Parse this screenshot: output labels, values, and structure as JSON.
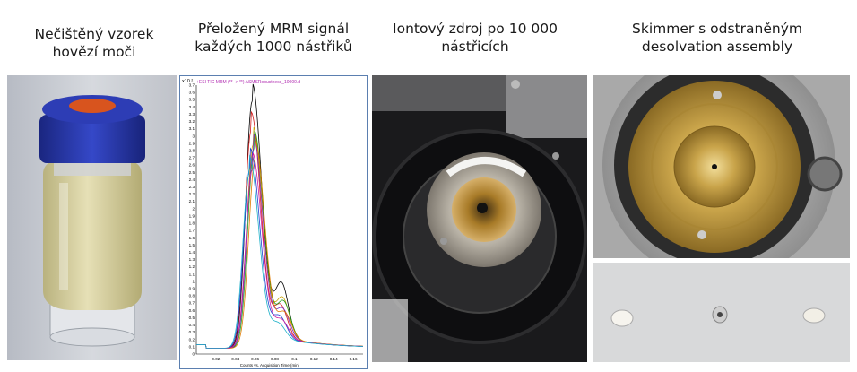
{
  "captions": {
    "vial": "Nečištěný vzorek hovězí moči",
    "chart": "Přeložený MRM signál každých 1000 nástřiků",
    "source": "Iontový zdroj po 10 000 nástřicích",
    "skimmer": "Skimmer s odstraněným desolvation assembly"
  },
  "vial_panel": {
    "cap_color": "#2a3bb0",
    "septum_color": "#d8541e",
    "liquid_color": "#d9d3a3"
  },
  "chart_data": {
    "type": "line",
    "title": "+ESI TIC MRM (** -> **) ASMSRobustness_10000.d",
    "y_scale_label": "x10 ²",
    "xlabel": "Counts vs. Acquisition Time (min)",
    "xlim": [
      0.0,
      0.17
    ],
    "ylim": [
      0,
      3.7
    ],
    "x_ticks": [
      "0.02",
      "0.04",
      "0.06",
      "0.08",
      "0.1",
      "0.12",
      "0.14",
      "0.16"
    ],
    "y_ticks": [
      "0",
      "0.1",
      "0.2",
      "0.3",
      "0.4",
      "0.5",
      "0.6",
      "0.7",
      "0.8",
      "0.9",
      "1",
      "1.1",
      "1.2",
      "1.3",
      "1.4",
      "1.5",
      "1.6",
      "1.7",
      "1.8",
      "1.9",
      "2",
      "2.1",
      "2.2",
      "2.3",
      "2.4",
      "2.5",
      "2.6",
      "2.7",
      "2.8",
      "2.9",
      "3",
      "3.1",
      "3.2",
      "3.3",
      "3.4",
      "3.5",
      "3.6",
      "3.7"
    ],
    "series": [
      {
        "color": "#000000",
        "peak": 3.4,
        "center": 0.057,
        "shoulder": 0.75
      },
      {
        "color": "#d21b1b",
        "peak": 3.0,
        "center": 0.056,
        "shoulder": 0.45
      },
      {
        "color": "#c8a000",
        "peak": 2.8,
        "center": 0.058,
        "shoulder": 0.55
      },
      {
        "color": "#1a9a1a",
        "peak": 2.75,
        "center": 0.059,
        "shoulder": 0.5
      },
      {
        "color": "#7a2fc0",
        "peak": 2.7,
        "center": 0.058,
        "shoulder": 0.4
      },
      {
        "color": "#e07a00",
        "peak": 2.6,
        "center": 0.06,
        "shoulder": 0.35
      },
      {
        "color": "#1f3fd0",
        "peak": 2.5,
        "center": 0.055,
        "shoulder": 0.3
      },
      {
        "color": "#d01ca0",
        "peak": 2.45,
        "center": 0.057,
        "shoulder": 0.25
      },
      {
        "color": "#1cb0c8",
        "peak": 2.4,
        "center": 0.054,
        "shoulder": 0.2
      }
    ]
  }
}
